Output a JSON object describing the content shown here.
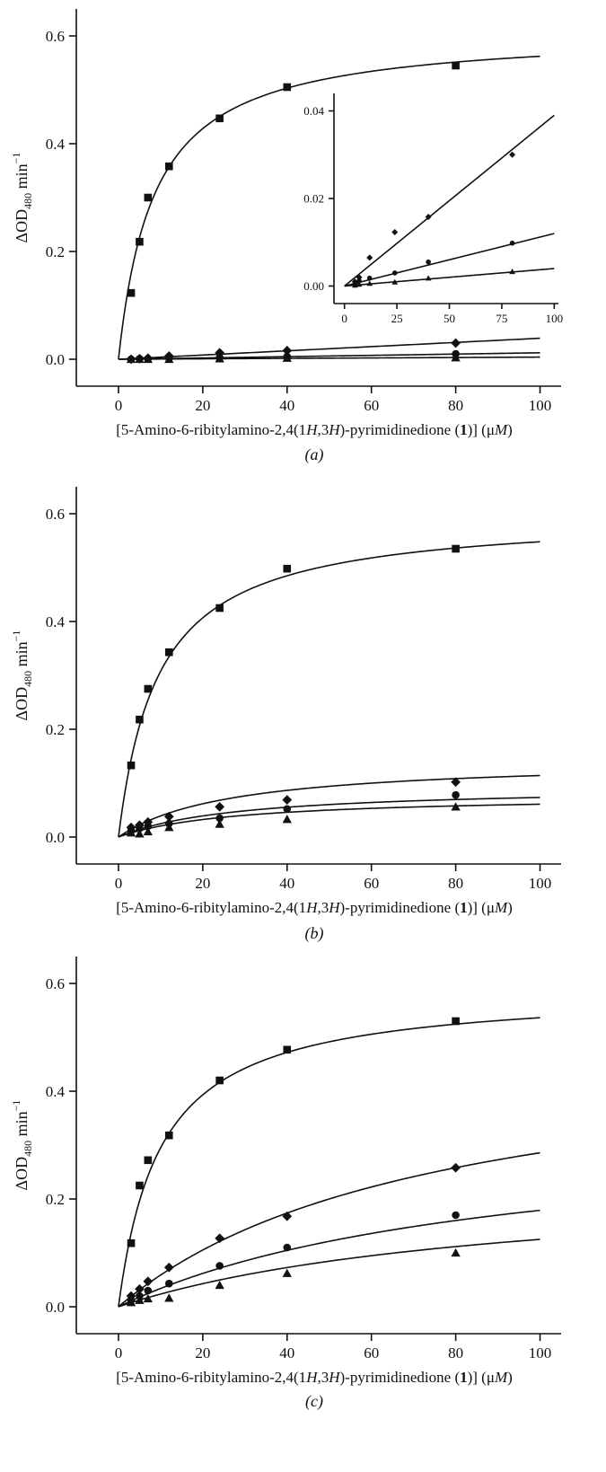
{
  "chart_data": [
    {
      "type": "scatter",
      "panel_label": "(a)",
      "ylabel_main": "ΔOD",
      "ylabel_sub": "480",
      "ylabel_tail": " min",
      "ylabel_sup": "−1",
      "xlabel_parts": [
        "[5-Amino-6-ribitylamino-2,4(1",
        "H",
        ",3",
        "H",
        ")-pyrimidinedione (",
        "1",
        ")] (μ",
        "M",
        ")"
      ],
      "xlim": [
        -10,
        105
      ],
      "ylim": [
        -0.05,
        0.65
      ],
      "xticks": [
        0,
        20,
        40,
        60,
        80,
        100
      ],
      "yticks": [
        0.0,
        0.2,
        0.4,
        0.6
      ],
      "ytick_labels": [
        "0.0",
        "0.2",
        "0.4",
        "0.6"
      ],
      "series": [
        {
          "marker": "square",
          "fit": {
            "model": "mm",
            "vmax": 0.61,
            "km": 8.5
          },
          "x": [
            3,
            5,
            7,
            12,
            24,
            40,
            80
          ],
          "y": [
            0.123,
            0.218,
            0.3,
            0.358,
            0.447,
            0.505,
            0.545
          ]
        },
        {
          "marker": "diamond",
          "fit": {
            "model": "linear",
            "slope": 0.00039
          },
          "x": [
            3,
            5,
            7,
            12,
            24,
            40,
            80
          ],
          "y": [
            0.0,
            0.001,
            0.002,
            0.006,
            0.012,
            0.016,
            0.03
          ]
        },
        {
          "marker": "circle",
          "fit": {
            "model": "linear",
            "slope": 0.00012
          },
          "x": [
            3,
            5,
            7,
            12,
            24,
            40,
            80
          ],
          "y": [
            0.0,
            0.001,
            0.001,
            0.002,
            0.003,
            0.005,
            0.01
          ]
        },
        {
          "marker": "triangle",
          "fit": {
            "model": "linear",
            "slope": 4e-05
          },
          "x": [
            3,
            5,
            7,
            12,
            24,
            40,
            80
          ],
          "y": [
            0.0,
            0.0,
            0.0,
            0.0,
            0.001,
            0.002,
            0.003
          ]
        }
      ],
      "inset": {
        "xlim": [
          -5,
          102
        ],
        "ylim": [
          -0.004,
          0.044
        ],
        "xticks": [
          0,
          25,
          50,
          75,
          100
        ],
        "yticks": [
          0.0,
          0.02,
          0.04
        ],
        "ytick_labels": [
          "0.00",
          "0.02",
          "0.04"
        ],
        "series": [
          {
            "marker": "diamond",
            "fit": {
              "model": "linear",
              "slope": 0.00039
            },
            "x": [
              5,
              7,
              12,
              24,
              40,
              80
            ],
            "y": [
              0.001,
              0.002,
              0.0065,
              0.0123,
              0.0158,
              0.03
            ]
          },
          {
            "marker": "circle",
            "fit": {
              "model": "linear",
              "slope": 0.00012
            },
            "x": [
              5,
              7,
              12,
              24,
              40,
              80
            ],
            "y": [
              0.0005,
              0.0012,
              0.0018,
              0.003,
              0.0055,
              0.0098
            ]
          },
          {
            "marker": "triangle",
            "fit": {
              "model": "linear",
              "slope": 4e-05
            },
            "x": [
              5,
              7,
              12,
              24,
              40,
              80
            ],
            "y": [
              0.0002,
              0.0004,
              0.0006,
              0.0009,
              0.0018,
              0.0033
            ]
          }
        ]
      }
    },
    {
      "type": "scatter",
      "panel_label": "(b)",
      "ylabel_main": "ΔOD",
      "ylabel_sub": "480",
      "ylabel_tail": " min",
      "ylabel_sup": "−1",
      "xlabel_parts": [
        "[5-Amino-6-ribitylamino-2,4(1",
        "H",
        ",3",
        "H",
        ")-pyrimidinedione (",
        "1",
        ")] (μ",
        "M",
        ")"
      ],
      "xlim": [
        -10,
        105
      ],
      "ylim": [
        -0.05,
        0.65
      ],
      "xticks": [
        0,
        20,
        40,
        60,
        80,
        100
      ],
      "yticks": [
        0.0,
        0.2,
        0.4,
        0.6
      ],
      "ytick_labels": [
        "0.0",
        "0.2",
        "0.4",
        "0.6"
      ],
      "series": [
        {
          "marker": "square",
          "fit": {
            "model": "mm",
            "vmax": 0.6,
            "km": 9.5
          },
          "x": [
            3,
            5,
            7,
            12,
            24,
            40,
            80
          ],
          "y": [
            0.133,
            0.218,
            0.275,
            0.343,
            0.425,
            0.498,
            0.535
          ]
        },
        {
          "marker": "diamond",
          "fit": {
            "model": "mm",
            "vmax": 0.145,
            "km": 27
          },
          "x": [
            3,
            5,
            7,
            12,
            24,
            40,
            80
          ],
          "y": [
            0.018,
            0.022,
            0.028,
            0.038,
            0.056,
            0.069,
            0.102
          ]
        },
        {
          "marker": "circle",
          "fit": {
            "model": "mm",
            "vmax": 0.094,
            "km": 28
          },
          "x": [
            3,
            5,
            7,
            12,
            24,
            40,
            80
          ],
          "y": [
            0.012,
            0.016,
            0.02,
            0.025,
            0.035,
            0.052,
            0.078
          ]
        },
        {
          "marker": "triangle",
          "fit": {
            "model": "mm",
            "vmax": 0.078,
            "km": 28
          },
          "x": [
            3,
            5,
            7,
            12,
            24,
            40,
            80
          ],
          "y": [
            0.008,
            0.006,
            0.01,
            0.018,
            0.024,
            0.033,
            0.056
          ]
        }
      ]
    },
    {
      "type": "scatter",
      "panel_label": "(c)",
      "ylabel_main": "ΔOD",
      "ylabel_sub": "480",
      "ylabel_tail": " min",
      "ylabel_sup": "−1",
      "xlabel_parts": [
        "[5-Amino-6-ribitylamino-2,4(1",
        "H",
        ",3",
        "H",
        ")-pyrimidinedione (",
        "1",
        ")] (μ",
        "M",
        ")"
      ],
      "xlim": [
        -10,
        105
      ],
      "ylim": [
        -0.05,
        0.65
      ],
      "xticks": [
        0,
        20,
        40,
        60,
        80,
        100
      ],
      "yticks": [
        0.0,
        0.2,
        0.4,
        0.6
      ],
      "ytick_labels": [
        "0.0",
        "0.2",
        "0.4",
        "0.6"
      ],
      "series": [
        {
          "marker": "square",
          "fit": {
            "model": "mm",
            "vmax": 0.59,
            "km": 10
          },
          "x": [
            3,
            5,
            7,
            12,
            24,
            40,
            80
          ],
          "y": [
            0.118,
            0.225,
            0.272,
            0.318,
            0.42,
            0.477,
            0.53
          ]
        },
        {
          "marker": "diamond",
          "fit": {
            "model": "mm",
            "vmax": 0.5,
            "km": 75
          },
          "x": [
            3,
            5,
            7,
            12,
            24,
            40,
            80
          ],
          "y": [
            0.02,
            0.033,
            0.047,
            0.073,
            0.127,
            0.168,
            0.258
          ]
        },
        {
          "marker": "circle",
          "fit": {
            "model": "mm",
            "vmax": 0.34,
            "km": 90
          },
          "x": [
            3,
            5,
            7,
            12,
            24,
            40,
            80
          ],
          "y": [
            0.012,
            0.02,
            0.03,
            0.043,
            0.076,
            0.11,
            0.17
          ]
        },
        {
          "marker": "triangle",
          "fit": {
            "model": "mm",
            "vmax": 0.24,
            "km": 92
          },
          "x": [
            3,
            5,
            7,
            12,
            24,
            40,
            80
          ],
          "y": [
            0.008,
            0.012,
            0.015,
            0.016,
            0.04,
            0.062,
            0.1
          ]
        }
      ]
    }
  ]
}
